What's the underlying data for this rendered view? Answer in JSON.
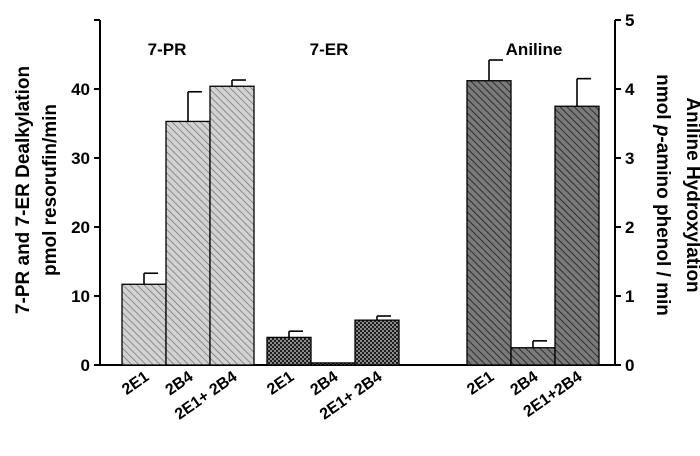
{
  "chart_data": {
    "type": "bar",
    "left_axis": {
      "label_line1": "7-PR and 7-ER Dealkylation",
      "label_line2": "pmol resorufin/min",
      "ylim": [
        0,
        50
      ],
      "ticks": [
        "0",
        "10",
        "20",
        "30",
        "40"
      ]
    },
    "right_axis": {
      "label_line1": "Aniline Hydroxylation",
      "label_line2_pre": "nmol ",
      "label_line2_italic": "p",
      "label_line2_post": "-amino phenol / min",
      "ylim": [
        0,
        5
      ],
      "ticks": [
        "0",
        "1",
        "2",
        "3",
        "4",
        "5"
      ]
    },
    "groups": [
      {
        "label": "7-PR",
        "axis": "left",
        "fill": "light",
        "categories": [
          "2E1",
          "2B4",
          "2E1+ 2B4"
        ],
        "values": [
          11.7,
          35.3,
          40.4
        ],
        "errors": [
          1.6,
          4.3,
          0.9
        ]
      },
      {
        "label": "7-ER",
        "axis": "left",
        "fill": "checker",
        "categories": [
          "2E1",
          "2B4",
          "2E1+ 2B4"
        ],
        "values": [
          4.0,
          0.3,
          6.5
        ],
        "errors": [
          0.9,
          0.0,
          0.6
        ]
      },
      {
        "label": "Aniline",
        "axis": "right",
        "fill": "dark",
        "categories": [
          "2E1",
          "2B4",
          "2E1+2B4"
        ],
        "values": [
          4.12,
          0.25,
          3.75
        ],
        "errors": [
          0.3,
          0.1,
          0.4
        ]
      }
    ],
    "grid": false
  }
}
